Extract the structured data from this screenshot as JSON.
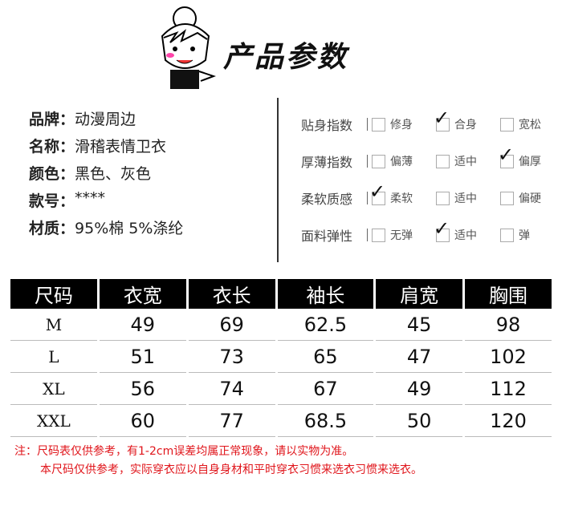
{
  "title": "产品参数",
  "info": [
    {
      "key": "品牌：",
      "value": "动漫周边"
    },
    {
      "key": "名称：",
      "value": "滑稽表情卫衣"
    },
    {
      "key": "颜色：",
      "value": "黑色、灰色"
    },
    {
      "key": "款号：",
      "value": "****"
    },
    {
      "key": "材质：",
      "value": "95%棉  5%涤纶"
    }
  ],
  "params": [
    {
      "label": "贴身指数",
      "options": [
        "修身",
        "合身",
        "宽松"
      ],
      "checked": 1
    },
    {
      "label": "厚薄指数",
      "options": [
        "偏薄",
        "适中",
        "偏厚"
      ],
      "checked": 2
    },
    {
      "label": "柔软质感",
      "options": [
        "柔软",
        "适中",
        "偏硬"
      ],
      "checked": 0
    },
    {
      "label": "面料弹性",
      "options": [
        "无弹",
        "适中",
        "弹"
      ],
      "checked": 1
    }
  ],
  "table": {
    "headers": [
      "尺码",
      "衣宽",
      "衣长",
      "袖长",
      "肩宽",
      "胸围"
    ],
    "rows": [
      [
        "M",
        "49",
        "69",
        "62.5",
        "45",
        "98"
      ],
      [
        "L",
        "51",
        "73",
        "65",
        "47",
        "102"
      ],
      [
        "XL",
        "56",
        "74",
        "67",
        "49",
        "112"
      ],
      [
        "XXL",
        "60",
        "77",
        "68.5",
        "50",
        "120"
      ]
    ]
  },
  "notes": [
    "注：尺码表仅供参考，有1-2cm误差均属正常现象，请以实物为准。",
    "本尺码仅供参考，实际穿衣应以自身身材和平时穿衣习惯来选衣习惯来选衣。"
  ]
}
